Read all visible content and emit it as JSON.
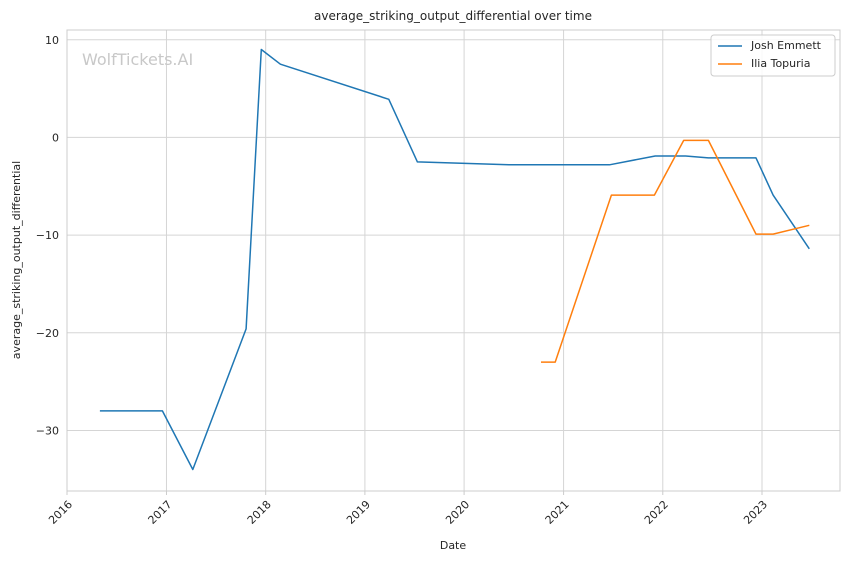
{
  "chart_data": {
    "type": "line",
    "title": "average_striking_output_differential over time",
    "xlabel": "Date",
    "ylabel": "average_striking_output_differential",
    "watermark": "WolfTickets.AI",
    "xlim": [
      "2016-01-01",
      "2023-10-15"
    ],
    "ylim": [
      -36.2,
      11
    ],
    "x_ticks": [
      "2016-01-01",
      "2017-01-01",
      "2018-01-01",
      "2019-01-01",
      "2020-01-01",
      "2021-01-01",
      "2022-01-01",
      "2023-01-01"
    ],
    "x_tick_labels": [
      "2016",
      "2017",
      "2018",
      "2019",
      "2020",
      "2021",
      "2022",
      "2023"
    ],
    "y_ticks": [
      10,
      0,
      -10,
      -20,
      -30
    ],
    "y_tick_labels": [
      "10",
      "0",
      "−10",
      "−20",
      "−30"
    ],
    "grid": true,
    "legend_position": "top-right",
    "series": [
      {
        "name": "Josh Emmett",
        "color": "#1f77b4",
        "points": [
          {
            "x": "2016-05-01",
            "y": -28
          },
          {
            "x": "2016-12-17",
            "y": -28
          },
          {
            "x": "2017-04-08",
            "y": -34
          },
          {
            "x": "2017-10-21",
            "y": -19.6
          },
          {
            "x": "2017-12-16",
            "y": 9
          },
          {
            "x": "2018-02-24",
            "y": 7.5
          },
          {
            "x": "2019-03-30",
            "y": 3.9
          },
          {
            "x": "2019-07-13",
            "y": -2.5
          },
          {
            "x": "2020-06-20",
            "y": -2.8
          },
          {
            "x": "2021-06-19",
            "y": -2.8
          },
          {
            "x": "2021-12-04",
            "y": -1.9
          },
          {
            "x": "2022-03-26",
            "y": -1.9
          },
          {
            "x": "2022-06-18",
            "y": -2.1
          },
          {
            "x": "2022-12-10",
            "y": -2.1
          },
          {
            "x": "2023-02-11",
            "y": -5.9
          },
          {
            "x": "2023-06-24",
            "y": -11.4
          }
        ]
      },
      {
        "name": "Ilia Topuria",
        "color": "#ff7f0e",
        "points": [
          {
            "x": "2020-10-10",
            "y": -23
          },
          {
            "x": "2020-12-01",
            "y": -23
          },
          {
            "x": "2021-06-26",
            "y": -5.9
          },
          {
            "x": "2021-12-01",
            "y": -5.9
          },
          {
            "x": "2022-03-19",
            "y": -0.3
          },
          {
            "x": "2022-06-18",
            "y": -0.3
          },
          {
            "x": "2022-12-10",
            "y": -9.9
          },
          {
            "x": "2023-02-11",
            "y": -9.9
          },
          {
            "x": "2023-06-24",
            "y": -9
          }
        ]
      }
    ]
  }
}
